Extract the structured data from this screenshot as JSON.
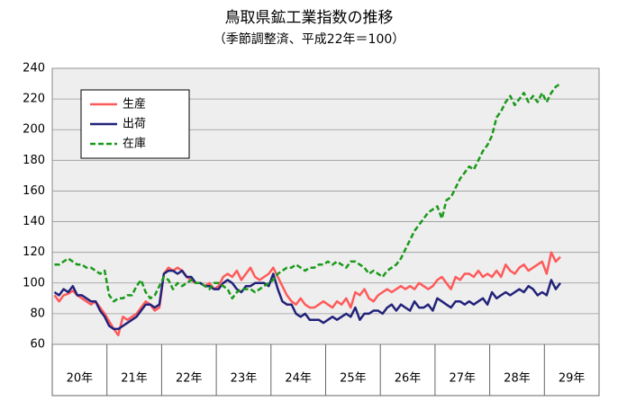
{
  "chart_data": {
    "type": "line",
    "title": "鳥取県鉱工業指数の推移",
    "subtitle": "（季節調整済、平成22年＝100）",
    "year_labels": [
      "20年",
      "21年",
      "22年",
      "23年",
      "24年",
      "25年",
      "26年",
      "27年",
      "28年",
      "29年"
    ],
    "months_per_year": 12,
    "ylim": [
      60,
      240
    ],
    "yticks": [
      60,
      80,
      100,
      120,
      140,
      160,
      180,
      200,
      220,
      240
    ],
    "grid": true,
    "legend": "upper left",
    "series": [
      {
        "name": "生産",
        "color": "#ff5a5a",
        "dash": false,
        "values": [
          92,
          88,
          92,
          93,
          95,
          92,
          90,
          88,
          86,
          88,
          84,
          80,
          75,
          70,
          66,
          78,
          76,
          78,
          80,
          84,
          88,
          86,
          82,
          84,
          106,
          110,
          108,
          110,
          108,
          104,
          102,
          100,
          100,
          98,
          100,
          96,
          98,
          104,
          106,
          104,
          108,
          102,
          106,
          110,
          104,
          102,
          104,
          106,
          110,
          104,
          98,
          92,
          88,
          86,
          90,
          86,
          84,
          84,
          86,
          88,
          86,
          84,
          88,
          86,
          90,
          84,
          94,
          92,
          96,
          90,
          88,
          92,
          94,
          96,
          94,
          96,
          98,
          96,
          98,
          96,
          100,
          98,
          96,
          98,
          102,
          104,
          100,
          96,
          104,
          102,
          106,
          106,
          104,
          108,
          104,
          106,
          104,
          108,
          104,
          112,
          108,
          106,
          110,
          112,
          108,
          110,
          112,
          114,
          106,
          120,
          114,
          117
        ]
      },
      {
        "name": "出荷",
        "color": "#22227a",
        "dash": false,
        "values": [
          94,
          92,
          96,
          94,
          98,
          92,
          92,
          90,
          88,
          88,
          82,
          78,
          72,
          70,
          70,
          72,
          74,
          76,
          78,
          82,
          86,
          86,
          84,
          86,
          106,
          108,
          108,
          106,
          108,
          104,
          104,
          100,
          100,
          98,
          98,
          96,
          96,
          100,
          102,
          100,
          96,
          94,
          98,
          98,
          100,
          100,
          100,
          98,
          106,
          96,
          88,
          86,
          86,
          80,
          78,
          80,
          76,
          76,
          76,
          74,
          76,
          78,
          76,
          78,
          80,
          78,
          84,
          76,
          80,
          80,
          82,
          82,
          80,
          84,
          86,
          82,
          86,
          84,
          82,
          88,
          84,
          84,
          86,
          82,
          90,
          88,
          86,
          84,
          88,
          88,
          86,
          88,
          86,
          88,
          90,
          86,
          94,
          90,
          92,
          94,
          92,
          94,
          96,
          94,
          98,
          96,
          92,
          94,
          92,
          102,
          96,
          100
        ]
      },
      {
        "name": "在庫",
        "color": "#1a9a1a",
        "dash": true,
        "values": [
          112,
          112,
          114,
          116,
          114,
          112,
          112,
          110,
          110,
          108,
          106,
          108,
          92,
          88,
          90,
          90,
          92,
          92,
          98,
          102,
          94,
          90,
          92,
          98,
          104,
          102,
          96,
          100,
          98,
          100,
          102,
          100,
          100,
          98,
          96,
          100,
          100,
          98,
          96,
          90,
          94,
          96,
          96,
          96,
          94,
          96,
          98,
          100,
          102,
          106,
          108,
          110,
          110,
          112,
          110,
          108,
          110,
          110,
          112,
          112,
          114,
          112,
          114,
          112,
          110,
          114,
          114,
          112,
          110,
          106,
          108,
          106,
          104,
          108,
          110,
          112,
          116,
          122,
          128,
          134,
          138,
          142,
          146,
          148,
          150,
          142,
          154,
          156,
          162,
          168,
          172,
          176,
          174,
          180,
          186,
          190,
          196,
          208,
          212,
          218,
          222,
          216,
          220,
          224,
          218,
          222,
          218,
          224,
          218,
          224,
          228,
          230
        ]
      }
    ]
  }
}
